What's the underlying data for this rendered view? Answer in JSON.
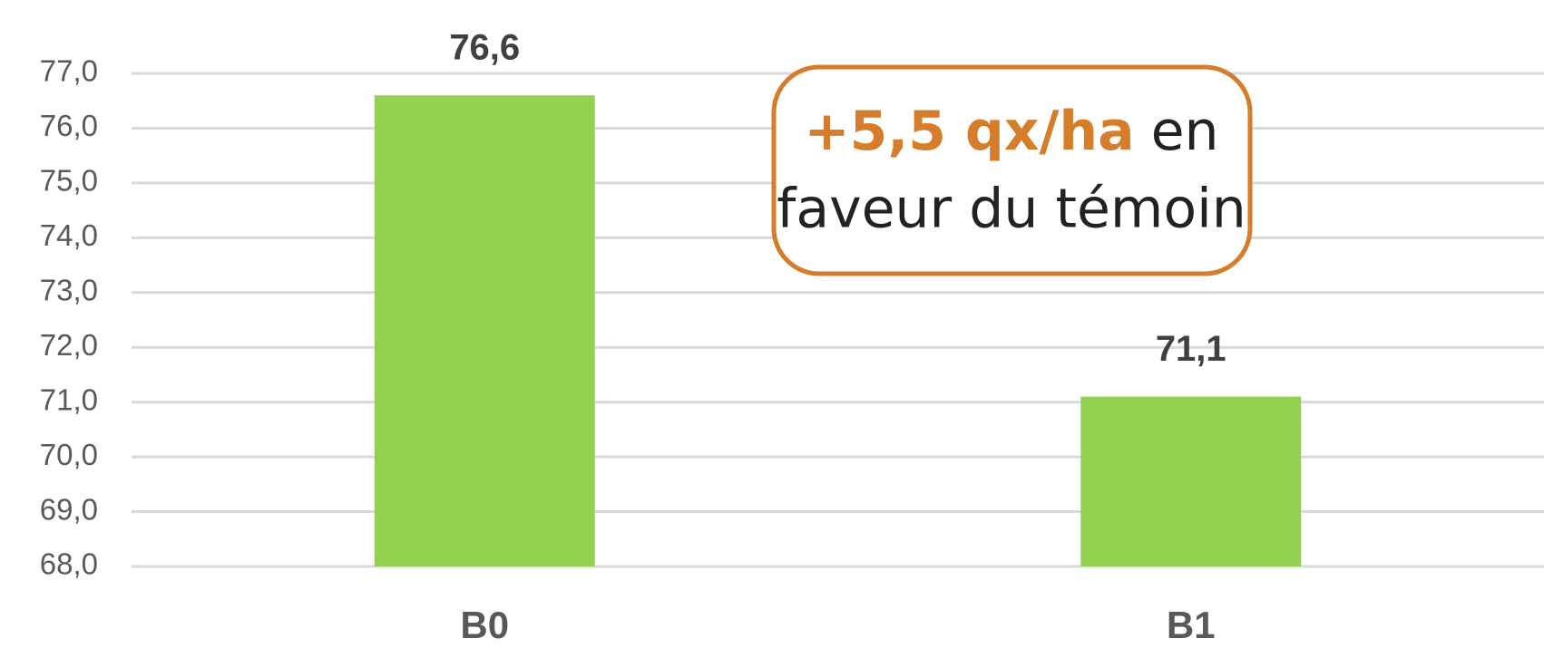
{
  "chart_data": {
    "type": "bar",
    "categories": [
      "B0",
      "B1"
    ],
    "values": [
      76.6,
      71.1
    ],
    "value_labels": [
      "76,6",
      "71,1"
    ],
    "color": "#92d050",
    "ylim": [
      68,
      77
    ],
    "yticks": [
      {
        "value": 68,
        "label": "68,0"
      },
      {
        "value": 69,
        "label": "69,0"
      },
      {
        "value": 70,
        "label": "70,0"
      },
      {
        "value": 71,
        "label": "71,0"
      },
      {
        "value": 72,
        "label": "72,0"
      },
      {
        "value": 73,
        "label": "73,0"
      },
      {
        "value": 74,
        "label": "74,0"
      },
      {
        "value": 75,
        "label": "75,0"
      },
      {
        "value": 76,
        "label": "76,0"
      },
      {
        "value": 77,
        "label": "77,0"
      }
    ],
    "grid": true,
    "annotation": {
      "highlight": "+5,5 qx/ha",
      "line1": "en",
      "line2": "faveur du témoin"
    }
  }
}
